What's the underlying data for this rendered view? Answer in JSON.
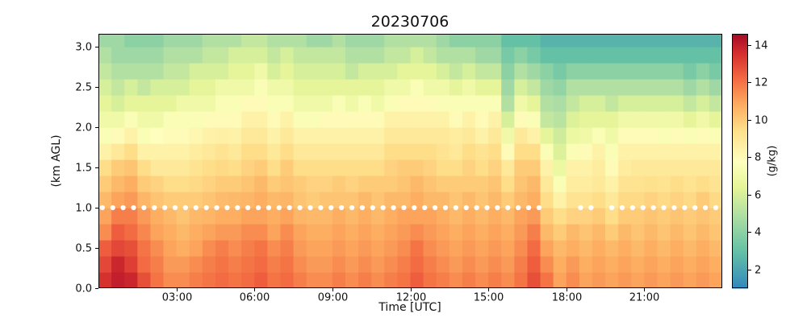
{
  "chart_data": {
    "type": "heatmap",
    "title": "20230706",
    "xlabel": "Time [UTC]",
    "ylabel": "(km AGL)",
    "colorbar_label": "(g/kg)",
    "xlim_hours": [
      0,
      24
    ],
    "ylim_km": [
      0,
      3.16
    ],
    "column_step_hours": 0.5,
    "row_height_km": 0.2,
    "vmin": 1.0,
    "vmax": 14.6,
    "grid_on": false,
    "x_ticks": [
      {
        "hour": 3,
        "label": "03:00"
      },
      {
        "hour": 6,
        "label": "06:00"
      },
      {
        "hour": 9,
        "label": "09:00"
      },
      {
        "hour": 12,
        "label": "12:00"
      },
      {
        "hour": 15,
        "label": "15:00"
      },
      {
        "hour": 18,
        "label": "18:00"
      },
      {
        "hour": 21,
        "label": "21:00"
      }
    ],
    "y_ticks": [
      {
        "km": 0.0,
        "label": "0.0"
      },
      {
        "km": 0.5,
        "label": "0.5"
      },
      {
        "km": 1.0,
        "label": "1.0"
      },
      {
        "km": 1.5,
        "label": "1.5"
      },
      {
        "km": 2.0,
        "label": "2.0"
      },
      {
        "km": 2.5,
        "label": "2.5"
      },
      {
        "km": 3.0,
        "label": "3.0"
      }
    ],
    "colorbar_ticks": [
      {
        "value": 2,
        "label": "2"
      },
      {
        "value": 4,
        "label": "4"
      },
      {
        "value": 6,
        "label": "6"
      },
      {
        "value": 8,
        "label": "8"
      },
      {
        "value": 10,
        "label": "10"
      },
      {
        "value": 12,
        "label": "12"
      },
      {
        "value": 14,
        "label": "14"
      }
    ],
    "colormap_stops": [
      [
        0.0,
        "#3288bd"
      ],
      [
        0.15,
        "#66c2a5"
      ],
      [
        0.28,
        "#abdda4"
      ],
      [
        0.4,
        "#e6f598"
      ],
      [
        0.5,
        "#feffbe"
      ],
      [
        0.62,
        "#fee08b"
      ],
      [
        0.72,
        "#fdae61"
      ],
      [
        0.82,
        "#f46d43"
      ],
      [
        0.92,
        "#d7302f"
      ],
      [
        1.0,
        "#a50b26"
      ]
    ],
    "values_bottom_to_top_by_column_g_per_kg": [
      [
        13.5,
        13.0,
        12.5,
        11.5,
        11.0,
        10.5,
        10.0,
        9.5,
        8.5,
        7.5,
        7.0,
        6.5,
        6.0,
        5.5,
        5.0,
        4.5
      ],
      [
        14.0,
        13.8,
        13.0,
        12.5,
        11.8,
        11.0,
        10.5,
        10.0,
        9.0,
        8.0,
        7.0,
        6.0,
        5.5,
        5.0,
        4.5,
        4.5
      ],
      [
        13.8,
        13.2,
        12.8,
        12.2,
        11.8,
        11.2,
        10.8,
        10.2,
        9.5,
        8.5,
        7.5,
        6.5,
        6.0,
        5.0,
        4.5,
        4.0
      ],
      [
        12.8,
        12.2,
        12.0,
        11.6,
        11.2,
        10.6,
        10.0,
        9.5,
        8.5,
        7.5,
        7.0,
        6.5,
        5.5,
        5.0,
        4.5,
        4.0
      ],
      [
        12.0,
        11.8,
        11.5,
        11.0,
        10.8,
        10.2,
        9.8,
        9.0,
        8.5,
        7.8,
        7.0,
        6.5,
        6.0,
        5.0,
        4.5,
        4.0
      ],
      [
        11.5,
        11.2,
        11.0,
        10.8,
        10.5,
        10.0,
        9.5,
        9.0,
        8.5,
        8.0,
        7.5,
        6.5,
        6.0,
        5.5,
        5.0,
        4.5
      ],
      [
        11.5,
        11.2,
        10.8,
        10.5,
        10.2,
        10.0,
        9.5,
        9.0,
        8.5,
        8.0,
        7.5,
        7.0,
        6.0,
        5.5,
        5.0,
        4.5
      ],
      [
        11.8,
        11.5,
        11.0,
        10.8,
        10.5,
        10.0,
        9.6,
        9.2,
        8.8,
        8.2,
        7.5,
        7.0,
        6.5,
        6.0,
        5.0,
        4.5
      ],
      [
        12.0,
        11.8,
        11.5,
        11.0,
        10.6,
        10.2,
        9.8,
        9.5,
        9.0,
        8.5,
        8.0,
        7.0,
        6.5,
        6.0,
        5.5,
        5.0
      ],
      [
        12.2,
        12.0,
        11.8,
        11.2,
        10.8,
        10.4,
        10.0,
        9.6,
        9.2,
        8.6,
        8.0,
        7.5,
        7.0,
        6.0,
        5.5,
        5.0
      ],
      [
        12.0,
        11.8,
        11.5,
        11.2,
        10.8,
        10.5,
        10.0,
        9.5,
        9.0,
        8.5,
        8.0,
        7.5,
        7.0,
        6.5,
        6.0,
        5.0
      ],
      [
        12.2,
        12.0,
        11.8,
        11.5,
        11.0,
        10.6,
        10.2,
        9.8,
        9.5,
        9.0,
        8.5,
        8.0,
        7.0,
        6.5,
        6.0,
        5.5
      ],
      [
        12.5,
        12.2,
        12.0,
        11.5,
        11.0,
        10.8,
        10.5,
        10.0,
        9.5,
        9.0,
        8.5,
        8.0,
        7.5,
        7.0,
        6.0,
        5.5
      ],
      [
        12.0,
        11.8,
        11.5,
        11.0,
        10.8,
        10.5,
        10.0,
        9.5,
        9.0,
        8.5,
        8.0,
        7.5,
        7.0,
        6.0,
        5.5,
        5.0
      ],
      [
        12.2,
        12.0,
        11.8,
        11.5,
        11.0,
        10.6,
        10.2,
        10.0,
        9.5,
        9.0,
        8.5,
        7.5,
        7.0,
        6.5,
        6.0,
        5.0
      ],
      [
        11.8,
        11.5,
        11.2,
        11.0,
        10.6,
        10.2,
        10.0,
        9.5,
        9.0,
        8.5,
        7.5,
        7.0,
        6.5,
        6.0,
        5.5,
        5.0
      ],
      [
        11.5,
        11.2,
        11.0,
        10.8,
        10.5,
        10.0,
        9.8,
        9.5,
        9.0,
        8.5,
        7.5,
        7.0,
        6.5,
        6.0,
        5.5,
        4.5
      ],
      [
        11.5,
        11.2,
        11.0,
        10.8,
        10.5,
        10.2,
        9.8,
        9.5,
        9.0,
        8.5,
        8.0,
        7.0,
        6.5,
        6.0,
        5.5,
        4.5
      ],
      [
        11.8,
        11.5,
        11.2,
        11.0,
        10.8,
        10.2,
        10.0,
        9.5,
        9.0,
        8.5,
        8.0,
        7.5,
        6.5,
        6.0,
        5.5,
        5.0
      ],
      [
        11.5,
        11.2,
        11.0,
        10.8,
        10.5,
        10.2,
        9.8,
        9.5,
        9.0,
        8.5,
        8.0,
        7.0,
        6.5,
        5.5,
        5.0,
        4.5
      ],
      [
        11.8,
        11.5,
        11.2,
        11.0,
        10.8,
        10.5,
        10.0,
        9.5,
        9.0,
        8.5,
        8.0,
        7.5,
        6.5,
        6.0,
        5.0,
        4.5
      ],
      [
        11.5,
        11.2,
        11.0,
        10.8,
        10.5,
        10.2,
        10.0,
        9.5,
        9.0,
        8.5,
        8.0,
        7.0,
        6.5,
        6.0,
        5.0,
        4.5
      ],
      [
        11.8,
        11.5,
        11.2,
        11.0,
        10.8,
        10.5,
        10.0,
        9.8,
        9.5,
        9.0,
        8.5,
        7.5,
        7.0,
        6.0,
        5.5,
        5.0
      ],
      [
        12.0,
        11.8,
        11.5,
        11.2,
        11.0,
        10.5,
        10.2,
        10.0,
        9.5,
        9.0,
        8.5,
        8.0,
        7.0,
        6.5,
        5.5,
        5.0
      ],
      [
        12.5,
        12.2,
        12.0,
        11.5,
        11.0,
        10.8,
        10.5,
        10.0,
        9.5,
        9.0,
        8.5,
        8.0,
        7.5,
        6.5,
        6.0,
        5.0
      ],
      [
        12.0,
        11.8,
        11.5,
        11.2,
        11.0,
        10.5,
        10.2,
        9.8,
        9.5,
        9.0,
        8.5,
        8.0,
        7.0,
        6.5,
        5.5,
        5.0
      ],
      [
        11.8,
        11.5,
        11.2,
        11.0,
        10.8,
        10.5,
        10.0,
        9.5,
        9.2,
        9.0,
        8.5,
        7.5,
        7.0,
        6.0,
        5.0,
        4.5
      ],
      [
        11.5,
        11.2,
        11.0,
        10.8,
        10.5,
        10.2,
        10.0,
        9.5,
        9.0,
        8.8,
        8.0,
        7.5,
        6.5,
        5.5,
        5.0,
        4.0
      ],
      [
        11.8,
        11.5,
        11.2,
        11.0,
        10.8,
        10.5,
        10.0,
        9.8,
        9.5,
        9.0,
        8.5,
        7.5,
        7.0,
        6.0,
        5.0,
        4.0
      ],
      [
        11.5,
        11.2,
        11.0,
        10.8,
        10.5,
        10.2,
        10.0,
        9.5,
        9.2,
        8.5,
        8.0,
        7.5,
        6.5,
        5.5,
        4.5,
        4.0
      ],
      [
        11.8,
        11.5,
        11.2,
        11.0,
        10.8,
        10.5,
        10.2,
        9.8,
        9.5,
        9.0,
        8.5,
        7.5,
        6.5,
        5.5,
        4.5,
        4.0
      ],
      [
        11.5,
        11.2,
        11.0,
        10.8,
        10.5,
        10.0,
        9.5,
        9.0,
        8.0,
        7.0,
        6.0,
        5.0,
        4.5,
        4.0,
        3.5,
        3.0
      ],
      [
        12.0,
        11.8,
        11.5,
        11.2,
        11.0,
        10.5,
        10.2,
        10.0,
        9.5,
        9.0,
        8.0,
        7.0,
        6.0,
        5.0,
        4.0,
        3.0
      ],
      [
        12.8,
        12.5,
        12.2,
        11.8,
        11.2,
        10.8,
        10.5,
        10.0,
        9.5,
        8.5,
        7.5,
        6.5,
        5.5,
        4.5,
        3.5,
        3.0
      ],
      [
        12.0,
        11.5,
        11.0,
        10.5,
        10.0,
        9.5,
        9.0,
        8.5,
        7.5,
        6.5,
        5.5,
        5.0,
        4.5,
        4.0,
        3.0,
        2.5
      ],
      [
        11.0,
        10.8,
        10.5,
        10.0,
        9.5,
        8.5,
        7.5,
        6.8,
        6.2,
        5.8,
        5.2,
        4.8,
        4.2,
        3.5,
        3.0,
        2.5
      ],
      [
        11.5,
        11.2,
        10.8,
        10.5,
        9.8,
        9.2,
        8.8,
        8.5,
        7.5,
        6.8,
        6.2,
        5.5,
        5.0,
        4.0,
        3.0,
        2.5
      ],
      [
        11.0,
        10.8,
        10.5,
        10.2,
        9.8,
        9.2,
        8.8,
        8.5,
        8.0,
        7.0,
        6.5,
        6.0,
        5.0,
        4.0,
        3.0,
        2.5
      ],
      [
        11.2,
        11.0,
        10.8,
        10.5,
        10.0,
        9.5,
        9.0,
        8.8,
        8.5,
        7.5,
        6.5,
        6.0,
        5.0,
        4.0,
        3.0,
        2.5
      ],
      [
        11.0,
        10.8,
        10.5,
        10.0,
        9.5,
        9.0,
        8.5,
        8.0,
        7.5,
        7.0,
        6.5,
        5.5,
        5.0,
        4.0,
        3.0,
        2.5
      ],
      [
        11.2,
        11.0,
        10.8,
        10.5,
        10.0,
        9.6,
        9.2,
        8.8,
        8.5,
        8.0,
        7.0,
        6.0,
        5.0,
        4.0,
        3.0,
        2.5
      ],
      [
        11.0,
        10.8,
        10.5,
        10.2,
        10.0,
        9.6,
        9.2,
        9.0,
        8.5,
        8.0,
        7.0,
        6.0,
        5.0,
        4.0,
        3.0,
        2.5
      ],
      [
        11.2,
        11.0,
        10.8,
        10.5,
        10.2,
        9.8,
        9.4,
        9.0,
        8.5,
        8.0,
        7.0,
        6.0,
        5.0,
        4.0,
        3.0,
        2.5
      ],
      [
        11.0,
        10.8,
        10.5,
        10.2,
        10.0,
        9.6,
        9.2,
        9.0,
        8.5,
        7.5,
        7.0,
        6.0,
        5.0,
        4.0,
        3.0,
        2.5
      ],
      [
        11.2,
        11.0,
        10.8,
        10.5,
        10.2,
        9.8,
        9.5,
        9.0,
        8.5,
        8.0,
        7.0,
        6.0,
        5.0,
        4.0,
        3.0,
        2.5
      ],
      [
        11.0,
        10.8,
        10.5,
        10.2,
        10.0,
        9.6,
        9.2,
        9.0,
        8.5,
        7.5,
        6.5,
        5.5,
        4.5,
        3.5,
        3.0,
        2.5
      ],
      [
        11.2,
        11.0,
        10.8,
        10.5,
        10.2,
        10.0,
        9.5,
        9.0,
        8.5,
        8.0,
        7.0,
        6.0,
        5.0,
        4.0,
        3.0,
        2.5
      ],
      [
        11.0,
        10.8,
        10.5,
        10.2,
        10.0,
        9.6,
        9.2,
        9.0,
        8.5,
        7.5,
        6.5,
        5.5,
        4.5,
        3.5,
        3.0,
        2.5
      ]
    ],
    "marker_line": {
      "height_km": 1.0,
      "color": "#ffffff",
      "times_hours": [
        0.15,
        0.55,
        0.95,
        1.35,
        1.75,
        2.15,
        2.55,
        2.95,
        3.35,
        3.75,
        4.15,
        4.55,
        4.95,
        5.35,
        5.75,
        6.15,
        6.55,
        6.95,
        7.35,
        7.75,
        8.15,
        8.55,
        8.95,
        9.35,
        9.75,
        10.15,
        10.55,
        10.95,
        11.35,
        11.75,
        12.15,
        12.55,
        12.95,
        13.35,
        13.75,
        14.15,
        14.55,
        14.95,
        15.35,
        15.75,
        16.15,
        16.55,
        16.95,
        18.55,
        18.95,
        19.75,
        20.15,
        20.55,
        20.95,
        21.35,
        21.75,
        22.15,
        22.55,
        22.95,
        23.35,
        23.75
      ]
    },
    "frame_color": "#000000",
    "background_color": "#ffffff"
  }
}
